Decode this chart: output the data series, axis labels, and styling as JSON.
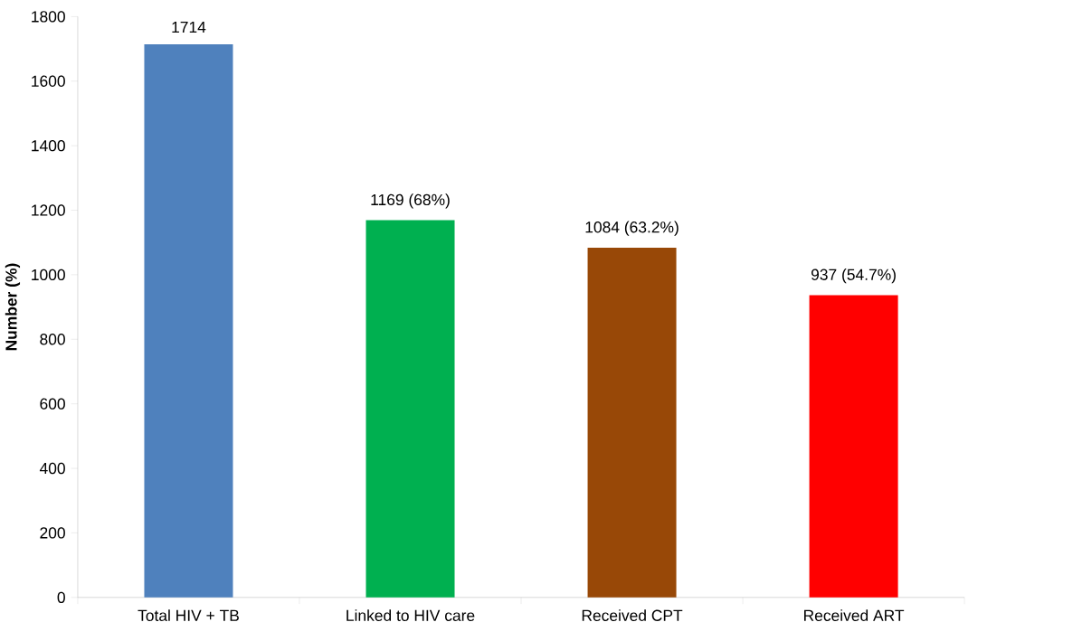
{
  "chart_data": {
    "type": "bar",
    "ylabel": "Number (%)",
    "categories": [
      "Total HIV + TB",
      "Linked to HIV care",
      "Received CPT",
      "Received ART"
    ],
    "values": [
      1714,
      1169,
      1084,
      937
    ],
    "colors": [
      "#4f81bd",
      "#00b050",
      "#984807",
      "#ff0000"
    ],
    "value_labels": [
      "1714",
      "1169 (68%)",
      "1084 (63.2%)",
      "937 (54.7%)"
    ],
    "ylim": [
      0,
      1800
    ],
    "yticks": [
      0,
      200,
      400,
      600,
      800,
      1000,
      1200,
      1400,
      1600,
      1800
    ]
  }
}
